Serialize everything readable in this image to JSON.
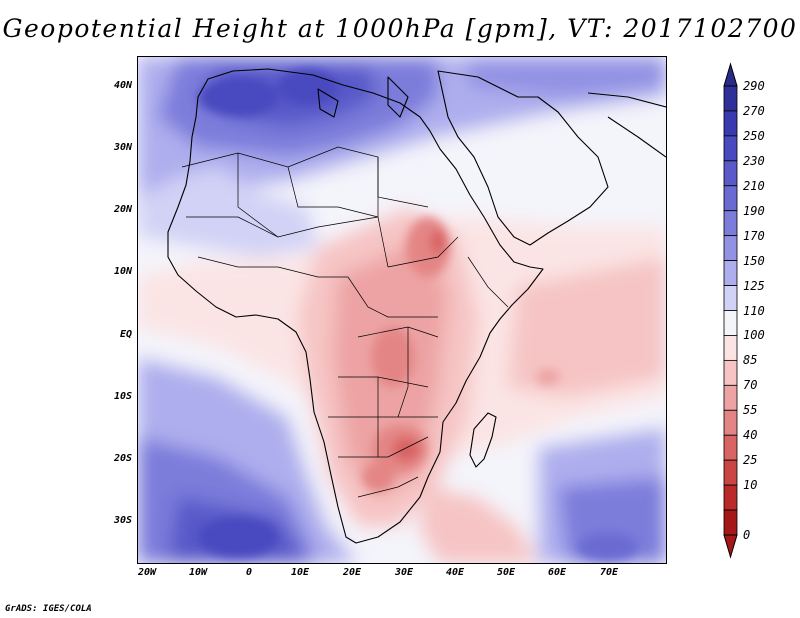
{
  "title": "Geopotential Height at 1000hPa [gpm], VT: 2017102700",
  "credit": "GrADS: IGES/COLA",
  "map": {
    "lat_ticks": [
      "40N",
      "30N",
      "20N",
      "10N",
      "EQ",
      "10S",
      "20S",
      "30S"
    ],
    "lon_ticks": [
      "20W",
      "10W",
      "0",
      "10E",
      "20E",
      "30E",
      "40E",
      "50E",
      "60E",
      "70E"
    ]
  },
  "colorbar": {
    "labels": [
      "290",
      "270",
      "250",
      "230",
      "210",
      "190",
      "170",
      "150",
      "125",
      "110",
      "100",
      "85",
      "70",
      "55",
      "40",
      "25",
      "10",
      "0"
    ],
    "colors": [
      "#2f2f9a",
      "#3939b0",
      "#4a4ac0",
      "#5959c9",
      "#6a6ad2",
      "#7c7cdb",
      "#9292e4",
      "#aeaeee",
      "#d2d2f6",
      "#f4f4fb",
      "#fbe4e4",
      "#f6c4c4",
      "#eda3a3",
      "#e48585",
      "#d86464",
      "#cc4545",
      "#bb2a2a",
      "#a51818"
    ]
  },
  "chart_data": {
    "type": "heatmap",
    "title": "Geopotential Height at 1000hPa [gpm], VT: 2017102700",
    "variable": "Geopotential Height",
    "level": "1000hPa",
    "units": "gpm",
    "valid_time": "2017102700",
    "lon_range": [
      -22,
      80
    ],
    "lat_range": [
      -37,
      45
    ],
    "contour_levels": [
      0,
      10,
      25,
      40,
      55,
      70,
      85,
      100,
      110,
      125,
      150,
      170,
      190,
      210,
      230,
      250,
      270,
      290
    ]
  }
}
